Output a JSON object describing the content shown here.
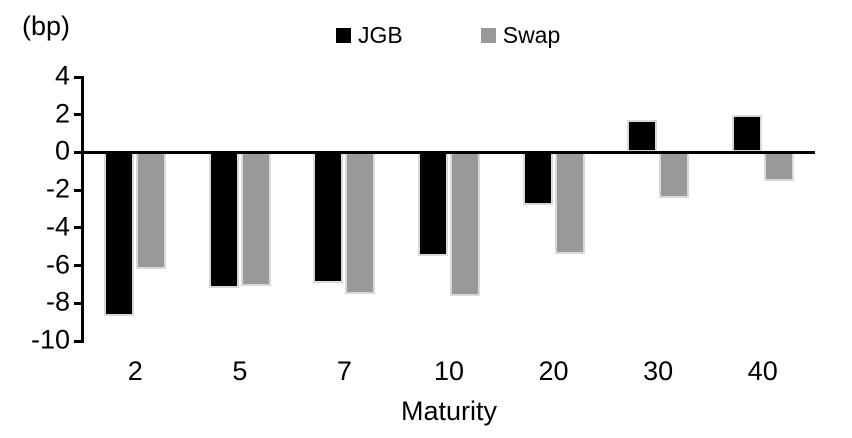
{
  "chart_data": {
    "type": "bar",
    "title": "",
    "unit_label": "(bp)",
    "xlabel": "Maturity",
    "categories": [
      "2",
      "5",
      "7",
      "10",
      "20",
      "30",
      "40"
    ],
    "series": [
      {
        "name": "JGB",
        "color": "#000000",
        "values": [
          -8.7,
          -7.2,
          -6.9,
          -5.5,
          -2.8,
          1.7,
          2.0
        ]
      },
      {
        "name": "Swap",
        "color": "#999999",
        "values": [
          -6.2,
          -7.1,
          -7.5,
          -7.6,
          -5.4,
          -2.4,
          -1.5
        ]
      }
    ],
    "y_axis": {
      "min": -10,
      "max": 4,
      "tick_step": 2,
      "ticks": [
        4,
        2,
        0,
        -2,
        -4,
        -6,
        -8,
        -10
      ]
    },
    "legend_position": "top-center",
    "grid": false,
    "colors": {
      "background": "#ffffff",
      "axis": "#000000",
      "bar_border": "#d9d9d9"
    }
  }
}
